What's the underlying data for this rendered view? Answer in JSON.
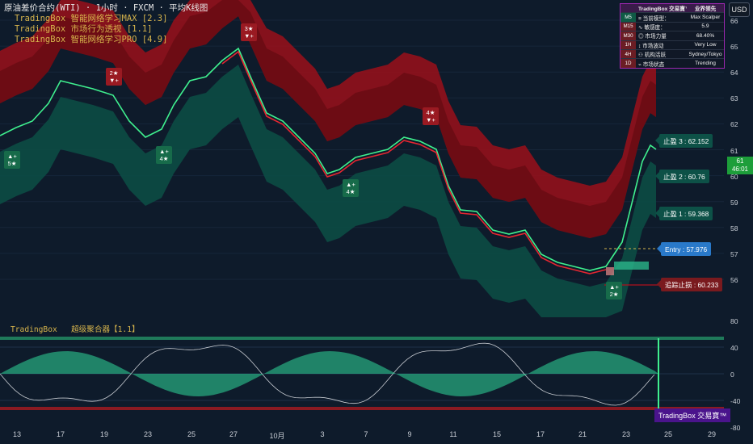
{
  "legend": {
    "title": "原油差价合约(WTI) · 1小时 · FXCM · 平均K线图",
    "indicators": [
      "TradingBox  智能网络学习MAX [2.3]",
      "TradingBox  市场行为透视 [1.1]",
      "TradingBox  智能网络学习PRO [4.9]"
    ]
  },
  "currency_button": "USD",
  "info_table": {
    "header": {
      "name": "TradingBox 交易寶™",
      "value": "业界领先"
    },
    "rows": [
      {
        "tf": "M5",
        "key": "≡ 当前模型：",
        "value": "Max Scalper"
      },
      {
        "tf": "M15",
        "key": "∿ 敏感度：",
        "value": "5.9"
      },
      {
        "tf": "M30",
        "key": "◎ 市场力量",
        "value": "68.40%"
      },
      {
        "tf": "1H",
        "key": "↕ 市场波动",
        "value": "Very Low"
      },
      {
        "tf": "4H",
        "key": "⚇ 机构活跃",
        "value": "Sydney/Tokyo"
      },
      {
        "tf": "1D",
        "key": "⌁ 市场状态",
        "value": "Trending"
      }
    ]
  },
  "price_tags": {
    "tp3": "止盈 3 : 62.152",
    "tp2": "止盈 2 : 60.76",
    "tp1": "止盈 1 : 59.368",
    "entry": "Entry : 57.976",
    "trailing_stop": "追踪止损 : 60.233"
  },
  "current_price": {
    "price": "61",
    "countdown": "46:01"
  },
  "y_axis_main": [
    "66",
    "65",
    "64",
    "63",
    "62",
    "61",
    "60",
    "59",
    "58",
    "57",
    "56"
  ],
  "y_axis_osc": [
    "80",
    "40",
    "0",
    "-40",
    "-80"
  ],
  "x_axis": [
    "13",
    "17",
    "19",
    "23",
    "25",
    "27",
    "10月",
    "3",
    "7",
    "9",
    "11",
    "15",
    "17",
    "21",
    "23",
    "25",
    "29"
  ],
  "markers": {
    "buy1": [
      "▲+",
      "5★"
    ],
    "buy2": [
      "▲+",
      "4★"
    ],
    "buy3": [
      "▲+",
      "4★"
    ],
    "buy4": [
      "▲+",
      "2★"
    ],
    "sell1": [
      "2★",
      "▼+"
    ],
    "sell2": [
      "3★",
      "▼+"
    ],
    "sell3": [
      "4★",
      "▼+"
    ]
  },
  "oscillator": {
    "name": "TradingBox",
    "title": "超级聚合器【1.1】",
    "brand": "TradingBox 交易寶™"
  },
  "colors": {
    "background": "#0e1b2b",
    "bull": "#3ff08f",
    "bear": "#e52631",
    "band_red": "#b0101c",
    "band_teal": "#0e5a4c",
    "accent_purple": "#9c27b0"
  }
}
